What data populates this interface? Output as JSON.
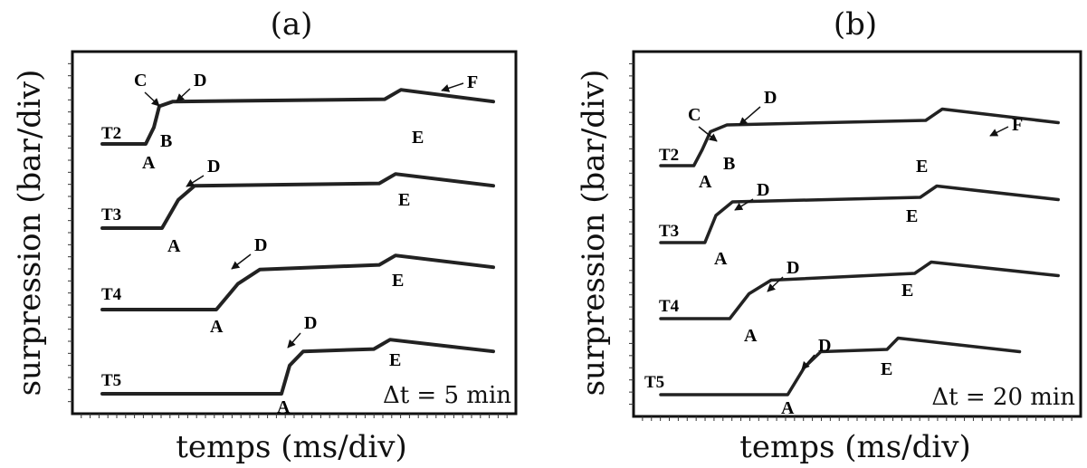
{
  "chart_data": [
    {
      "type": "line",
      "panel": "(a)",
      "xlabel": "temps (ms/div)",
      "ylabel": "surpression (bar/div)",
      "annotation": "Δt = 5 min",
      "series": [
        {
          "name": "T2",
          "x": [
            0,
            0.8,
            0.95,
            1.05,
            1.3,
            5.2,
            5.5,
            7.2
          ],
          "y": [
            0,
            0,
            0.35,
            0.8,
            0.9,
            0.95,
            1.15,
            0.9
          ]
        },
        {
          "name": "T3",
          "x": [
            0,
            1.1,
            1.4,
            1.7,
            5.1,
            5.4,
            7.2
          ],
          "y": [
            0,
            0,
            0.6,
            0.9,
            0.95,
            1.15,
            0.9
          ]
        },
        {
          "name": "T4",
          "x": [
            0,
            2.1,
            2.5,
            2.9,
            5.1,
            5.4,
            7.2
          ],
          "y": [
            0,
            0,
            0.55,
            0.85,
            0.95,
            1.15,
            0.9
          ]
        },
        {
          "name": "T5",
          "x": [
            0,
            3.3,
            3.45,
            3.7,
            5.0,
            5.3,
            7.2
          ],
          "y": [
            0,
            0,
            0.6,
            0.9,
            0.95,
            1.15,
            0.9
          ]
        }
      ],
      "point_labels": {
        "T2": [
          "A",
          "B",
          "C",
          "D",
          "E",
          "F"
        ],
        "T3": [
          "A",
          "D",
          "E"
        ],
        "T4": [
          "A",
          "D",
          "E"
        ],
        "T5": [
          "A",
          "D",
          "E"
        ]
      }
    },
    {
      "type": "line",
      "panel": "(b)",
      "xlabel": "temps (ms/div)",
      "ylabel": "surpression (bar/div)",
      "annotation": "Δt = 20 min",
      "series": [
        {
          "name": "T2",
          "x": [
            0,
            0.6,
            0.75,
            0.9,
            1.2,
            4.8,
            5.1,
            7.2
          ],
          "y": [
            0,
            0,
            0.35,
            0.75,
            0.9,
            1.0,
            1.25,
            0.95
          ]
        },
        {
          "name": "T3",
          "x": [
            0,
            0.8,
            1.0,
            1.3,
            4.7,
            5.0,
            7.2
          ],
          "y": [
            0,
            0,
            0.6,
            0.9,
            1.0,
            1.25,
            0.95
          ]
        },
        {
          "name": "T4",
          "x": [
            0,
            1.25,
            1.6,
            2.0,
            4.6,
            4.9,
            7.2
          ],
          "y": [
            0,
            0,
            0.55,
            0.85,
            1.0,
            1.25,
            0.95
          ]
        },
        {
          "name": "T5",
          "x": [
            0,
            2.3,
            2.6,
            2.9,
            4.1,
            4.3,
            6.5
          ],
          "y": [
            0,
            0,
            0.6,
            0.95,
            1.0,
            1.25,
            0.95
          ]
        }
      ],
      "point_labels": {
        "T2": [
          "A",
          "B",
          "C",
          "D",
          "E",
          "F"
        ],
        "T3": [
          "A",
          "D",
          "E"
        ],
        "T4": [
          "A",
          "D",
          "E"
        ],
        "T5": [
          "A",
          "D",
          "E"
        ]
      }
    }
  ]
}
